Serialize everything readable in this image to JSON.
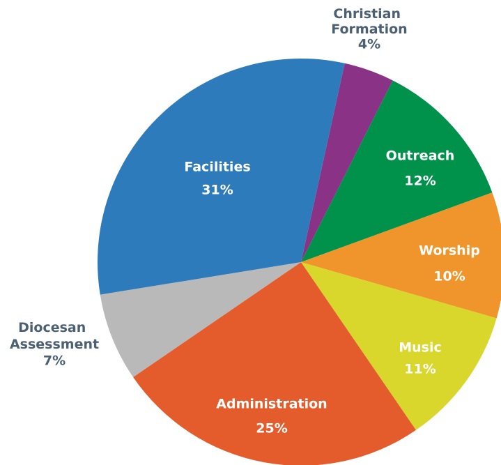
{
  "chart_data": {
    "type": "pie",
    "categories": [
      "Christian Formation",
      "Outreach",
      "Worship",
      "Music",
      "Administration",
      "Diocesan Assessment",
      "Facilities"
    ],
    "values": [
      4,
      12,
      10,
      11,
      25,
      7,
      31
    ],
    "value_labels": [
      "4%",
      "12%",
      "10%",
      "11%",
      "25%",
      "7%",
      "31%"
    ],
    "colors": [
      "#8a3286",
      "#00924a",
      "#f0952b",
      "#d9d62c",
      "#e55c2c",
      "#b9b9b9",
      "#2e7bbb"
    ]
  }
}
